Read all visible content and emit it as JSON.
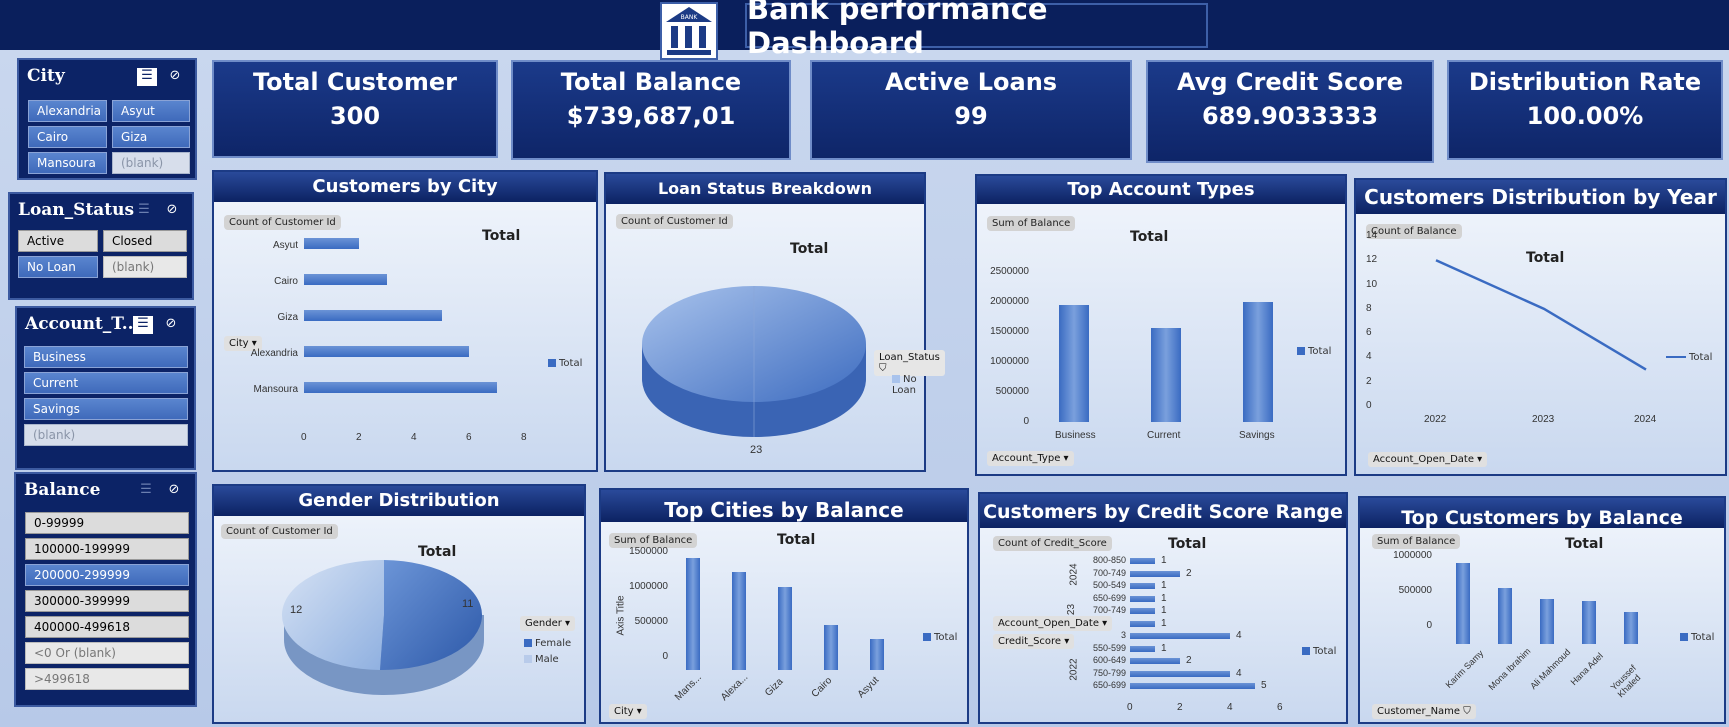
{
  "title": "Bank performance Dashboard",
  "logo_text": "BANK",
  "kpis": [
    {
      "title": "Total Customer",
      "value": "300"
    },
    {
      "title": "Total Balance",
      "value": "$739,687,01"
    },
    {
      "title": "Active Loans",
      "value": "99"
    },
    {
      "title": "Avg Credit Score",
      "value": "689.9033333"
    },
    {
      "title": "Distribution Rate",
      "value": "100.00%"
    }
  ],
  "slicers": {
    "city": {
      "title": "City",
      "items": [
        "Alexandria",
        "Asyut",
        "Cairo",
        "Giza",
        "Mansoura",
        "(blank)"
      ]
    },
    "loan": {
      "title": "Loan_Status",
      "items": [
        "Active",
        "Closed",
        "No Loan",
        "(blank)"
      ]
    },
    "account": {
      "title": "Account_T...",
      "items": [
        "Business",
        "Current",
        "Savings",
        "(blank)"
      ]
    },
    "balance": {
      "title": "Balance",
      "items": [
        "0-99999",
        "100000-199999",
        "200000-299999",
        "300000-399999",
        "400000-499618",
        "<0 Or (blank)",
        ">499618"
      ]
    }
  },
  "charts": {
    "city": {
      "title": "Customers by City",
      "tag": "Count of Customer Id",
      "total": "Total",
      "legend": "Total",
      "dropdown": "City",
      "categories": [
        "Asyut",
        "Cairo",
        "Giza",
        "Alexandria",
        "Mansoura"
      ],
      "values": [
        2,
        3,
        5,
        6,
        7
      ],
      "xticks": [
        "0",
        "2",
        "4",
        "6",
        "8"
      ]
    },
    "loan": {
      "title": "Loan Status Breakdown",
      "tag": "Count of Customer Id",
      "total": "Total",
      "dropdown": "Loan_Status",
      "legend": "No Loan",
      "value_label": "23"
    },
    "account": {
      "title": "Top Account Types",
      "tag": "Sum of Balance",
      "total": "Total",
      "legend": "Total",
      "dropdown": "Account_Type",
      "categories": [
        "Business",
        "Current",
        "Savings"
      ],
      "values": [
        1950000,
        1570000,
        2000000
      ],
      "yticks": [
        "2500000",
        "2000000",
        "1500000",
        "1000000",
        "500000",
        "0"
      ]
    },
    "year": {
      "title": "Customers Distribution by Year",
      "tag": "Count of Balance",
      "total": "Total",
      "legend": "Total",
      "dropdown": "Account_Open_Date",
      "x": [
        "2022",
        "2023",
        "2024"
      ],
      "values": [
        12,
        8,
        3
      ],
      "yticks": [
        "14",
        "12",
        "10",
        "8",
        "6",
        "4",
        "2",
        "0"
      ]
    },
    "gender": {
      "title": "Gender Distribution",
      "tag": "Count of Customer Id",
      "total": "Total",
      "dropdown": "Gender",
      "legend": [
        "Female",
        "Male"
      ],
      "values": [
        11,
        12
      ],
      "labels": [
        "12",
        "11"
      ]
    },
    "topcity": {
      "title": "Top Cities by Balance",
      "tag": "Sum of Balance",
      "total": "Total",
      "legend": "Total",
      "axis_title": "Axis Title",
      "dropdown": "City",
      "categories": [
        "Mans...",
        "Alexa...",
        "Giza",
        "Cairo",
        "Asyut"
      ],
      "values": [
        1680000,
        1470000,
        1250000,
        680000,
        460000
      ],
      "yticks": [
        "1500000",
        "1000000",
        "500000",
        "0"
      ]
    },
    "credit": {
      "title": "Customers by Credit Score Range",
      "tag": "Count of Credit_Score",
      "total": "Total",
      "legend": "Total",
      "dropdowns": [
        "Account_Open_Date",
        "Credit_Score"
      ],
      "years": [
        "2024",
        "23",
        "2022"
      ],
      "rows": [
        {
          "label": "800-850",
          "value": 1
        },
        {
          "label": "700-749",
          "value": 2
        },
        {
          "label": "500-549",
          "value": 1
        },
        {
          "label": "650-699",
          "value": 1
        },
        {
          "label": "700-749",
          "value": 1
        },
        {
          "label": "",
          "value": 1
        },
        {
          "label": "3",
          "value": 4
        },
        {
          "label": "550-599",
          "value": 1
        },
        {
          "label": "600-649",
          "value": 2
        },
        {
          "label": "750-799",
          "value": 4
        },
        {
          "label": "650-699",
          "value": 5
        }
      ],
      "xticks": [
        "0",
        "2",
        "4",
        "6"
      ]
    },
    "topcust": {
      "title": "Top Customers by Balance",
      "tag": "Sum of Balance",
      "total": "Total",
      "legend": "Total",
      "dropdown": "Customer_Name",
      "categories": [
        "Karim Samy",
        "Mona Ibrahim",
        "Ali Mahmoud",
        "Hana Adel",
        "Youssef Khaled"
      ],
      "values": [
        1300000,
        900000,
        730000,
        690000,
        520000
      ],
      "yticks": [
        "1000000",
        "500000",
        "0"
      ]
    }
  },
  "colors": {
    "navy": "#0a1f5c",
    "bar": "#3a6bc2"
  }
}
